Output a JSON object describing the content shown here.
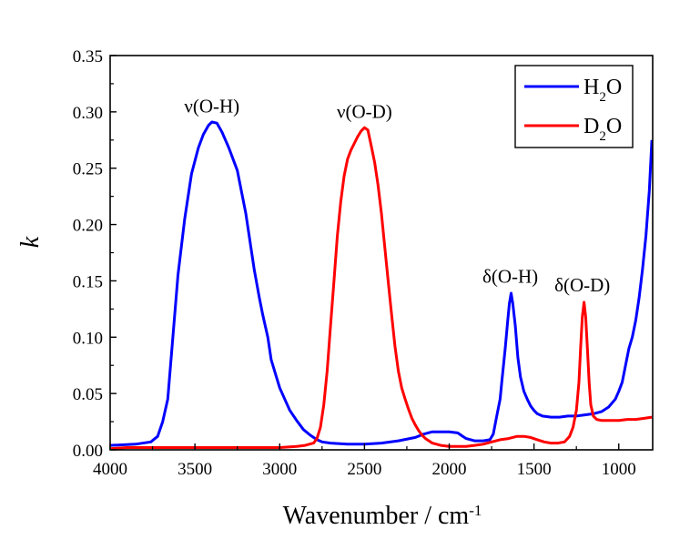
{
  "chart_data": {
    "type": "line",
    "title": "",
    "xlabel": "Wavenumber / cm",
    "xlabel_superscript": "-1",
    "ylabel": "k",
    "xlim": [
      4000,
      800
    ],
    "ylim": [
      0,
      0.35
    ],
    "x_ticks": [
      "4000",
      "3500",
      "3000",
      "2500",
      "2000",
      "1500",
      "1000"
    ],
    "y_ticks": [
      "0.00",
      "0.05",
      "0.10",
      "0.15",
      "0.20",
      "0.25",
      "0.30",
      "0.35"
    ],
    "x_tick_values": [
      4000,
      3500,
      3000,
      2500,
      2000,
      1500,
      1000
    ],
    "y_tick_values": [
      0,
      0.05,
      0.1,
      0.15,
      0.2,
      0.25,
      0.3,
      0.35
    ],
    "grid": false,
    "legend_position": "top-right",
    "series": [
      {
        "name": "H2O",
        "legend_main": "H",
        "legend_sub": "2",
        "legend_end": "O",
        "color": "#0000ff",
        "x": [
          4000,
          3850,
          3760,
          3720,
          3690,
          3660,
          3630,
          3600,
          3560,
          3520,
          3480,
          3450,
          3420,
          3400,
          3370,
          3340,
          3300,
          3250,
          3200,
          3150,
          3120,
          3100,
          3070,
          3050,
          3020,
          3000,
          2970,
          2940,
          2900,
          2860,
          2820,
          2800,
          2780,
          2750,
          2700,
          2600,
          2500,
          2400,
          2300,
          2200,
          2150,
          2100,
          2000,
          1950,
          1920,
          1900,
          1850,
          1800,
          1760,
          1740,
          1720,
          1700,
          1690,
          1670,
          1655,
          1645,
          1635,
          1625,
          1610,
          1595,
          1580,
          1560,
          1540,
          1520,
          1500,
          1480,
          1450,
          1400,
          1350,
          1300,
          1250,
          1200,
          1150,
          1100,
          1060,
          1020,
          1000,
          980,
          960,
          940,
          920,
          900,
          880,
          860,
          840,
          820,
          805
        ],
        "y": [
          0.004,
          0.005,
          0.007,
          0.012,
          0.025,
          0.045,
          0.1,
          0.155,
          0.205,
          0.245,
          0.268,
          0.28,
          0.288,
          0.291,
          0.29,
          0.282,
          0.268,
          0.248,
          0.21,
          0.16,
          0.135,
          0.12,
          0.1,
          0.08,
          0.065,
          0.055,
          0.045,
          0.035,
          0.026,
          0.018,
          0.013,
          0.011,
          0.009,
          0.007,
          0.006,
          0.005,
          0.005,
          0.006,
          0.008,
          0.011,
          0.014,
          0.016,
          0.016,
          0.015,
          0.012,
          0.01,
          0.008,
          0.008,
          0.009,
          0.014,
          0.03,
          0.045,
          0.06,
          0.09,
          0.115,
          0.13,
          0.139,
          0.13,
          0.11,
          0.082,
          0.065,
          0.052,
          0.045,
          0.039,
          0.035,
          0.032,
          0.03,
          0.029,
          0.029,
          0.03,
          0.03,
          0.031,
          0.032,
          0.034,
          0.038,
          0.045,
          0.052,
          0.06,
          0.075,
          0.09,
          0.1,
          0.115,
          0.135,
          0.16,
          0.19,
          0.23,
          0.275
        ]
      },
      {
        "name": "D2O",
        "legend_main": "D",
        "legend_sub": "2",
        "legend_end": "O",
        "color": "#ff0000",
        "x": [
          4000,
          3900,
          3800,
          3700,
          3600,
          3500,
          3400,
          3300,
          3200,
          3100,
          3000,
          2900,
          2850,
          2800,
          2780,
          2760,
          2740,
          2720,
          2700,
          2680,
          2660,
          2640,
          2620,
          2600,
          2580,
          2560,
          2540,
          2520,
          2500,
          2480,
          2460,
          2440,
          2420,
          2400,
          2380,
          2360,
          2340,
          2320,
          2300,
          2280,
          2260,
          2240,
          2220,
          2200,
          2180,
          2160,
          2140,
          2120,
          2100,
          2050,
          2000,
          1950,
          1900,
          1850,
          1800,
          1750,
          1700,
          1650,
          1600,
          1560,
          1520,
          1480,
          1440,
          1400,
          1360,
          1320,
          1290,
          1270,
          1250,
          1235,
          1225,
          1215,
          1205,
          1195,
          1185,
          1175,
          1165,
          1150,
          1130,
          1100,
          1050,
          1000,
          950,
          900,
          850,
          805
        ],
        "y": [
          0.001,
          0.002,
          0.002,
          0.002,
          0.002,
          0.002,
          0.002,
          0.002,
          0.002,
          0.002,
          0.002,
          0.003,
          0.004,
          0.006,
          0.01,
          0.02,
          0.04,
          0.07,
          0.11,
          0.15,
          0.19,
          0.22,
          0.243,
          0.258,
          0.266,
          0.272,
          0.278,
          0.283,
          0.286,
          0.284,
          0.27,
          0.255,
          0.235,
          0.21,
          0.18,
          0.15,
          0.12,
          0.092,
          0.07,
          0.055,
          0.045,
          0.036,
          0.028,
          0.022,
          0.017,
          0.013,
          0.01,
          0.008,
          0.006,
          0.004,
          0.003,
          0.003,
          0.003,
          0.004,
          0.005,
          0.007,
          0.009,
          0.01,
          0.012,
          0.012,
          0.011,
          0.009,
          0.007,
          0.006,
          0.006,
          0.007,
          0.012,
          0.02,
          0.035,
          0.06,
          0.09,
          0.118,
          0.131,
          0.118,
          0.09,
          0.06,
          0.04,
          0.03,
          0.027,
          0.026,
          0.026,
          0.026,
          0.027,
          0.027,
          0.028,
          0.029
        ]
      }
    ],
    "annotations": [
      {
        "text": "ν(O-H)",
        "x": 3400,
        "y": 0.293
      },
      {
        "text": "ν(O-D)",
        "x": 2500,
        "y": 0.288
      },
      {
        "text": "δ(O-H)",
        "x": 1640,
        "y": 0.142
      },
      {
        "text": "δ(O-D)",
        "x": 1215,
        "y": 0.134
      }
    ]
  }
}
